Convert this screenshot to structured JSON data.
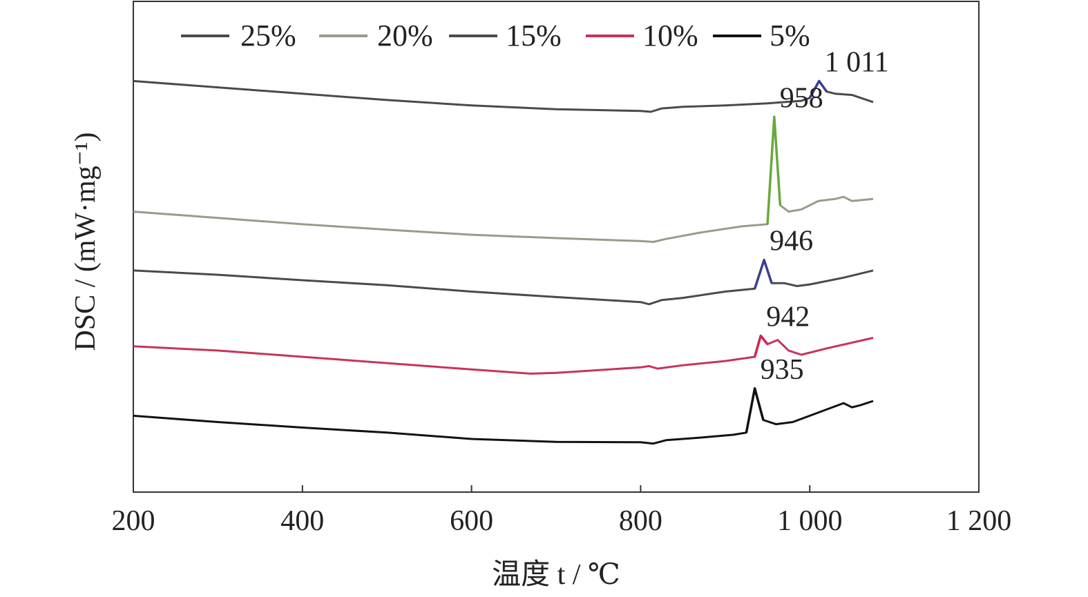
{
  "chart_data": {
    "type": "line",
    "xlabel": "温度 t / ℃",
    "ylabel": "DSC / (mW·mg⁻¹)",
    "xlim": [
      200,
      1200
    ],
    "ylim": [
      0,
      10
    ],
    "x_ticks": [
      200,
      400,
      600,
      800,
      1000,
      1200
    ],
    "x_tick_labels": [
      "200",
      "400",
      "600",
      "800",
      "1 000",
      "1 200"
    ],
    "y_ticks_shown": false,
    "grid": false,
    "legend_position": "top",
    "series": [
      {
        "name": "25%",
        "color": "#4a4a4a",
        "peak_color": "#3b3f8f",
        "peak_label": "1 011",
        "peak_x": 1011,
        "points": [
          [
            200,
            9.55
          ],
          [
            300,
            9.4
          ],
          [
            400,
            9.25
          ],
          [
            500,
            9.1
          ],
          [
            600,
            8.97
          ],
          [
            700,
            8.88
          ],
          [
            800,
            8.84
          ],
          [
            812,
            8.82
          ],
          [
            825,
            8.9
          ],
          [
            850,
            8.94
          ],
          [
            900,
            8.97
          ],
          [
            950,
            9.02
          ],
          [
            990,
            9.08
          ],
          [
            1000,
            9.15
          ],
          [
            1011,
            9.55
          ],
          [
            1020,
            9.3
          ],
          [
            1030,
            9.25
          ],
          [
            1050,
            9.22
          ],
          [
            1075,
            9.05
          ]
        ]
      },
      {
        "name": "20%",
        "color": "#9a9a8a",
        "peak_color": "#6aa83a",
        "peak_label": "958",
        "peak_x": 958,
        "points": [
          [
            200,
            6.45
          ],
          [
            300,
            6.3
          ],
          [
            400,
            6.15
          ],
          [
            500,
            6.02
          ],
          [
            600,
            5.9
          ],
          [
            700,
            5.82
          ],
          [
            800,
            5.75
          ],
          [
            815,
            5.73
          ],
          [
            830,
            5.8
          ],
          [
            870,
            5.95
          ],
          [
            920,
            6.1
          ],
          [
            950,
            6.15
          ],
          [
            958,
            8.7
          ],
          [
            965,
            6.6
          ],
          [
            975,
            6.45
          ],
          [
            990,
            6.5
          ],
          [
            1010,
            6.7
          ],
          [
            1030,
            6.75
          ],
          [
            1040,
            6.8
          ],
          [
            1050,
            6.7
          ],
          [
            1075,
            6.75
          ]
        ]
      },
      {
        "name": "15%",
        "color": "#4a4a4a",
        "peak_color": "#3b3f8f",
        "peak_label": "946",
        "peak_x": 946,
        "points": [
          [
            200,
            5.05
          ],
          [
            300,
            4.95
          ],
          [
            400,
            4.82
          ],
          [
            500,
            4.7
          ],
          [
            600,
            4.55
          ],
          [
            700,
            4.42
          ],
          [
            800,
            4.3
          ],
          [
            810,
            4.25
          ],
          [
            825,
            4.35
          ],
          [
            850,
            4.4
          ],
          [
            900,
            4.55
          ],
          [
            935,
            4.62
          ],
          [
            946,
            5.3
          ],
          [
            955,
            4.75
          ],
          [
            970,
            4.75
          ],
          [
            985,
            4.68
          ],
          [
            1000,
            4.72
          ],
          [
            1040,
            4.88
          ],
          [
            1075,
            5.05
          ]
        ]
      },
      {
        "name": "10%",
        "color": "#c8335a",
        "peak_color": "#d1234f",
        "peak_label": "942",
        "peak_x": 942,
        "points": [
          [
            200,
            3.25
          ],
          [
            300,
            3.15
          ],
          [
            400,
            3.0
          ],
          [
            500,
            2.85
          ],
          [
            600,
            2.7
          ],
          [
            670,
            2.6
          ],
          [
            700,
            2.62
          ],
          [
            800,
            2.75
          ],
          [
            810,
            2.78
          ],
          [
            820,
            2.72
          ],
          [
            850,
            2.8
          ],
          [
            900,
            2.9
          ],
          [
            935,
            3.0
          ],
          [
            942,
            3.5
          ],
          [
            950,
            3.3
          ],
          [
            962,
            3.4
          ],
          [
            975,
            3.15
          ],
          [
            990,
            3.05
          ],
          [
            1020,
            3.2
          ],
          [
            1075,
            3.45
          ]
        ]
      },
      {
        "name": "5%",
        "color": "#111111",
        "peak_color": "#111111",
        "peak_label": "935",
        "peak_x": 935,
        "points": [
          [
            200,
            1.6
          ],
          [
            300,
            1.45
          ],
          [
            400,
            1.32
          ],
          [
            500,
            1.2
          ],
          [
            600,
            1.05
          ],
          [
            700,
            0.98
          ],
          [
            800,
            0.97
          ],
          [
            815,
            0.94
          ],
          [
            830,
            1.02
          ],
          [
            870,
            1.08
          ],
          [
            910,
            1.15
          ],
          [
            925,
            1.2
          ],
          [
            935,
            2.25
          ],
          [
            945,
            1.5
          ],
          [
            960,
            1.4
          ],
          [
            980,
            1.45
          ],
          [
            1000,
            1.6
          ],
          [
            1040,
            1.9
          ],
          [
            1050,
            1.8
          ],
          [
            1060,
            1.85
          ],
          [
            1075,
            1.95
          ]
        ]
      }
    ]
  }
}
